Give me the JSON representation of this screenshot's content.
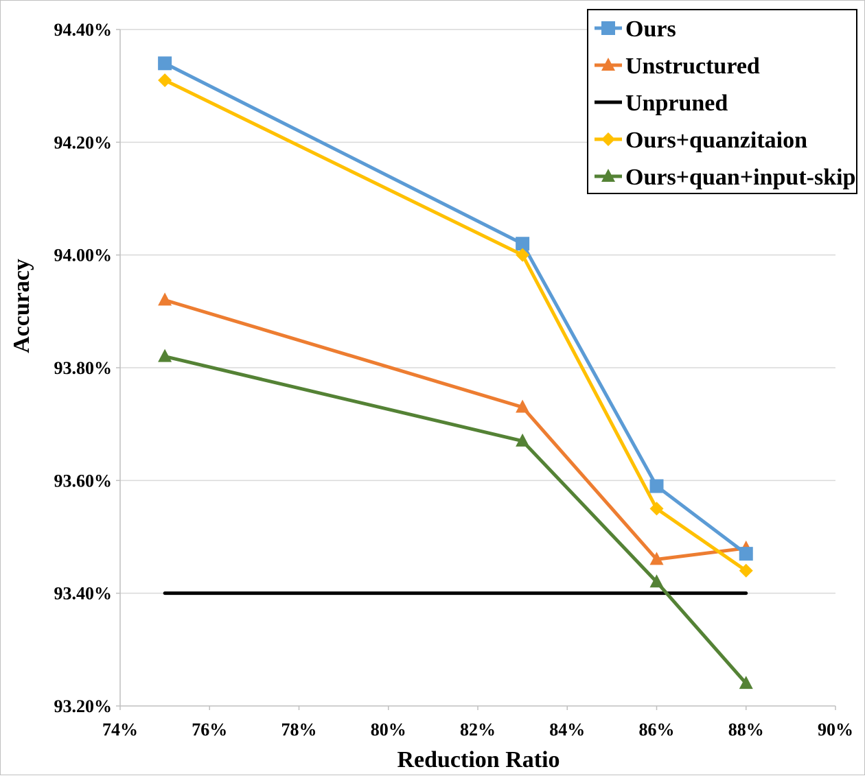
{
  "chart_data": {
    "type": "line",
    "xlabel": "Reduction Ratio",
    "ylabel": "Accuracy",
    "xlim": [
      74,
      90
    ],
    "ylim": [
      93.2,
      94.4
    ],
    "x_ticks": [
      74,
      76,
      78,
      80,
      82,
      84,
      86,
      88,
      90
    ],
    "x_tick_labels": [
      "74%",
      "76%",
      "78%",
      "80%",
      "82%",
      "84%",
      "86%",
      "88%",
      "90%"
    ],
    "y_ticks": [
      93.2,
      93.4,
      93.6,
      93.8,
      94.0,
      94.2,
      94.4
    ],
    "y_tick_labels": [
      "93.20%",
      "93.40%",
      "93.60%",
      "93.80%",
      "94.00%",
      "94.20%",
      "94.40%"
    ],
    "grid": "horizontal",
    "legend_position": "top-right",
    "series": [
      {
        "name": "Ours",
        "color": "#5B9BD5",
        "marker": "square",
        "x": [
          75,
          83,
          86,
          88
        ],
        "values": [
          94.34,
          94.02,
          93.59,
          93.47
        ]
      },
      {
        "name": "Unstructured",
        "color": "#ED7D31",
        "marker": "triangle",
        "x": [
          75,
          83,
          86,
          88
        ],
        "values": [
          93.92,
          93.73,
          93.46,
          93.48
        ]
      },
      {
        "name": "Unpruned",
        "color": "#000000",
        "marker": "none",
        "x": [
          75,
          88
        ],
        "values": [
          93.4,
          93.4
        ]
      },
      {
        "name": "Ours+quanzitaion",
        "color": "#FFC000",
        "marker": "diamond",
        "x": [
          75,
          83,
          86,
          88
        ],
        "values": [
          94.31,
          94.0,
          93.55,
          93.44
        ]
      },
      {
        "name": "Ours+quan+input-skip",
        "color": "#548235",
        "marker": "triangle",
        "x": [
          75,
          83,
          86,
          88
        ],
        "values": [
          93.82,
          93.67,
          93.42,
          93.24
        ]
      }
    ]
  }
}
